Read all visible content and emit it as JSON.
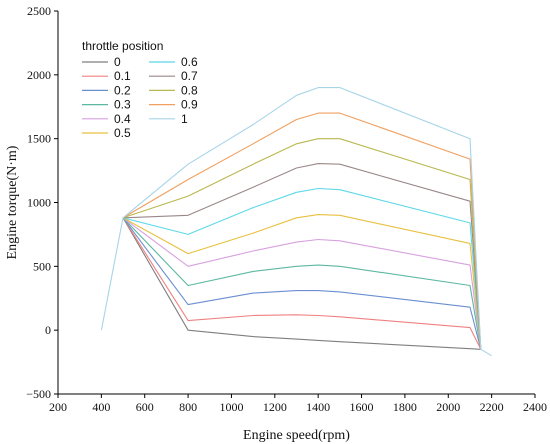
{
  "chart_data": {
    "type": "line",
    "xlabel": "Engine speed(rpm)",
    "ylabel": "Engine torque(N·m)",
    "xlim": [
      200,
      2400
    ],
    "ylim": [
      -500,
      2500
    ],
    "xticks": [
      200,
      400,
      600,
      800,
      1000,
      1200,
      1400,
      1600,
      1800,
      2000,
      2200,
      2400
    ],
    "yticks": [
      -500,
      0,
      500,
      1000,
      1500,
      2000,
      2500
    ],
    "grid": false,
    "legend": {
      "title": "throttle position",
      "position": "top-left",
      "columns": 2
    },
    "series": [
      {
        "name": "0",
        "color": "#7f7f7f",
        "x": [
          500,
          800,
          1100,
          1300,
          1400,
          1500,
          2100,
          2150
        ],
        "y": [
          880,
          0,
          -50,
          -70,
          -80,
          -90,
          -145,
          -150
        ]
      },
      {
        "name": "0.1",
        "color": "#f08080",
        "x": [
          500,
          800,
          1100,
          1300,
          1400,
          1500,
          2100,
          2150
        ],
        "y": [
          880,
          75,
          115,
          120,
          115,
          105,
          20,
          -150
        ]
      },
      {
        "name": "0.2",
        "color": "#6a8fd0",
        "x": [
          500,
          800,
          1100,
          1300,
          1400,
          1500,
          2100,
          2150
        ],
        "y": [
          880,
          200,
          290,
          310,
          310,
          300,
          180,
          -150
        ]
      },
      {
        "name": "0.3",
        "color": "#5cb8a0",
        "x": [
          500,
          800,
          1100,
          1300,
          1400,
          1500,
          2100,
          2150
        ],
        "y": [
          880,
          350,
          460,
          500,
          510,
          500,
          350,
          -150
        ]
      },
      {
        "name": "0.4",
        "color": "#d8a0e0",
        "x": [
          500,
          800,
          1100,
          1300,
          1400,
          1500,
          2100,
          2150
        ],
        "y": [
          880,
          500,
          620,
          690,
          710,
          700,
          510,
          -150
        ]
      },
      {
        "name": "0.5",
        "color": "#e8c040",
        "x": [
          500,
          800,
          1100,
          1300,
          1400,
          1500,
          2100,
          2150
        ],
        "y": [
          880,
          600,
          760,
          880,
          905,
          900,
          680,
          -150
        ]
      },
      {
        "name": "0.6",
        "color": "#5ed8e8",
        "x": [
          500,
          800,
          1100,
          1300,
          1400,
          1500,
          2100,
          2150
        ],
        "y": [
          880,
          750,
          960,
          1080,
          1110,
          1100,
          840,
          -150
        ]
      },
      {
        "name": "0.7",
        "color": "#9a8888",
        "x": [
          500,
          800,
          1100,
          1300,
          1400,
          1500,
          2100,
          2150
        ],
        "y": [
          880,
          900,
          1120,
          1270,
          1305,
          1300,
          1010,
          -150
        ]
      },
      {
        "name": "0.8",
        "color": "#b8b850",
        "x": [
          500,
          800,
          1100,
          1300,
          1400,
          1500,
          2100,
          2150
        ],
        "y": [
          880,
          1050,
          1300,
          1460,
          1500,
          1500,
          1180,
          -150
        ]
      },
      {
        "name": "0.9",
        "color": "#f0a060",
        "x": [
          500,
          800,
          1100,
          1300,
          1400,
          1500,
          2100,
          2150
        ],
        "y": [
          880,
          1180,
          1460,
          1650,
          1700,
          1700,
          1340,
          -150
        ]
      },
      {
        "name": "1",
        "color": "#a8d4e8",
        "x": [
          400,
          500,
          800,
          1100,
          1300,
          1400,
          1500,
          2100,
          2150,
          2200
        ],
        "y": [
          0,
          880,
          1300,
          1610,
          1840,
          1900,
          1900,
          1500,
          -150,
          -200
        ]
      }
    ]
  }
}
